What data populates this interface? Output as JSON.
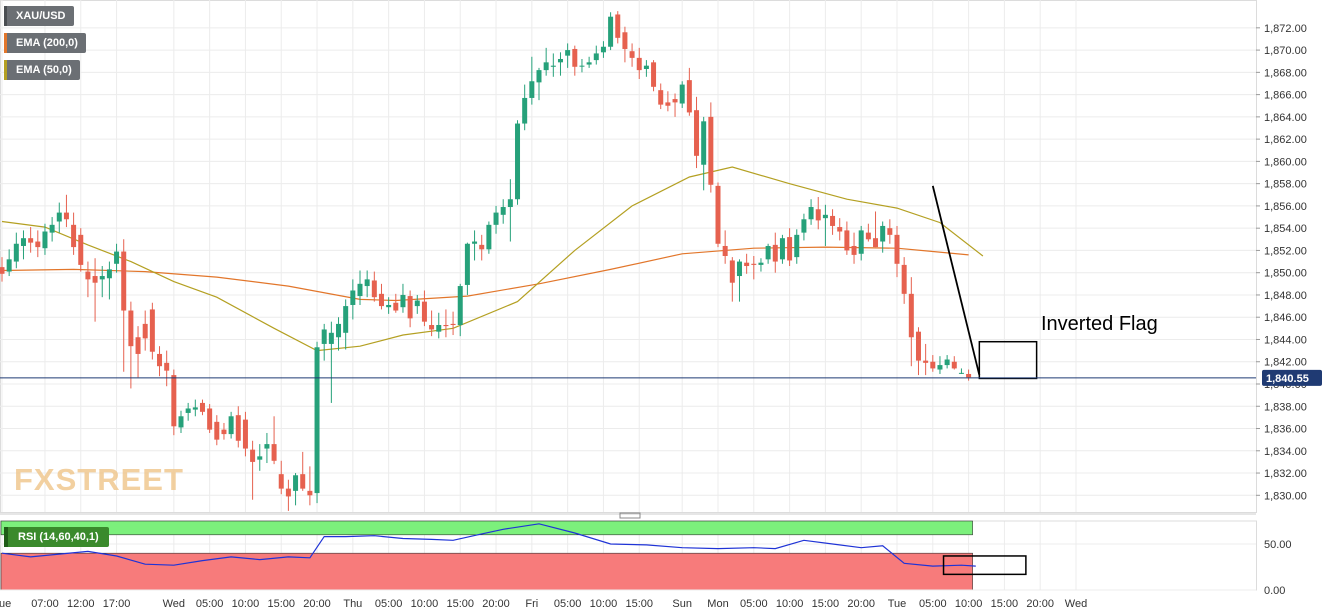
{
  "colors": {
    "up": "#26a17a",
    "down": "#e6614f",
    "ema200": "#e2762b",
    "ema50": "#b4a022",
    "price_line": "#1f3a73",
    "rsi_line": "#1f33d6",
    "rsi_upper": "#7cf07c",
    "rsi_lower": "#f77b7b",
    "grid": "#ececec",
    "axis_text": "#333333",
    "pattern": "#000000"
  },
  "legend": {
    "symbol": "XAU/USD",
    "ema200": "EMA (200,0)",
    "ema50": "EMA (50,0)",
    "rsi": "RSI (14,60,40,1)"
  },
  "annotation": {
    "label": "Inverted Flag"
  },
  "watermark": "FXSTREET",
  "price_label": "1,840.55",
  "chart_data": [
    {
      "type": "candlestick",
      "title": "",
      "ylim": [
        1828.5,
        1874.5
      ],
      "y_ticks": [
        "1,830.00",
        "1,832.00",
        "1,834.00",
        "1,836.00",
        "1,838.00",
        "1,840.00",
        "1,842.00",
        "1,844.00",
        "1,846.00",
        "1,848.00",
        "1,850.00",
        "1,852.00",
        "1,854.00",
        "1,856.00",
        "1,858.00",
        "1,860.00",
        "1,862.00",
        "1,864.00",
        "1,866.00",
        "1,868.00",
        "1,870.00",
        "1,872.00"
      ],
      "y_tick_values": [
        1830,
        1832,
        1834,
        1836,
        1838,
        1840,
        1842,
        1844,
        1846,
        1848,
        1850,
        1852,
        1854,
        1856,
        1858,
        1860,
        1862,
        1864,
        1866,
        1868,
        1870,
        1872
      ],
      "x_ticks": [
        "Tue",
        "07:00",
        "12:00",
        "17:00",
        "Wed",
        "05:00",
        "10:00",
        "15:00",
        "20:00",
        "Thu",
        "05:00",
        "10:00",
        "15:00",
        "20:00",
        "Fri",
        "05:00",
        "10:00",
        "15:00",
        "Sun",
        "Mon",
        "05:00",
        "10:00",
        "15:00",
        "20:00",
        "Tue",
        "05:00",
        "10:00",
        "15:00",
        "20:00",
        "Wed"
      ],
      "x_tick_bars": [
        0,
        6,
        11,
        16,
        24,
        29,
        34,
        39,
        44,
        49,
        54,
        59,
        64,
        69,
        74,
        79,
        84,
        89,
        95,
        100,
        105,
        110,
        115,
        120,
        125,
        130,
        135,
        140,
        145,
        150
      ],
      "last_price": 1840.55,
      "candles": [
        [
          1850.5,
          1851.4,
          1849.2,
          1849.9
        ],
        [
          1850.1,
          1852.1,
          1849.7,
          1851.2
        ],
        [
          1851.0,
          1853.6,
          1850.4,
          1852.6
        ],
        [
          1852.4,
          1853.8,
          1851.2,
          1853.1
        ],
        [
          1853.1,
          1854.1,
          1851.8,
          1852.7
        ],
        [
          1852.8,
          1853.8,
          1851.4,
          1852.3
        ],
        [
          1852.2,
          1854.4,
          1851.6,
          1853.7
        ],
        [
          1853.6,
          1855.0,
          1852.8,
          1854.3
        ],
        [
          1854.6,
          1856.3,
          1853.6,
          1855.4
        ],
        [
          1855.4,
          1857.0,
          1854.1,
          1854.8
        ],
        [
          1854.3,
          1855.4,
          1851.6,
          1852.3
        ],
        [
          1853.4,
          1854.0,
          1850.1,
          1850.7
        ],
        [
          1850.1,
          1851.0,
          1847.8,
          1849.4
        ],
        [
          1849.7,
          1851.3,
          1845.6,
          1849.1
        ],
        [
          1849.4,
          1850.6,
          1847.8,
          1849.7
        ],
        [
          1849.5,
          1851.0,
          1847.6,
          1850.3
        ],
        [
          1850.8,
          1852.6,
          1850.0,
          1851.9
        ],
        [
          1851.9,
          1853.0,
          1841.1,
          1846.6
        ],
        [
          1846.6,
          1847.4,
          1839.6,
          1843.4
        ],
        [
          1844.2,
          1845.2,
          1840.6,
          1842.7
        ],
        [
          1845.4,
          1846.6,
          1843.0,
          1844.1
        ],
        [
          1846.7,
          1847.3,
          1842.2,
          1842.9
        ],
        [
          1842.7,
          1843.4,
          1840.7,
          1841.6
        ],
        [
          1841.9,
          1843.0,
          1839.8,
          1841.2
        ],
        [
          1840.8,
          1841.3,
          1835.4,
          1836.2
        ],
        [
          1836.1,
          1837.6,
          1835.6,
          1837.1
        ],
        [
          1837.4,
          1838.3,
          1836.7,
          1837.8
        ],
        [
          1837.7,
          1838.6,
          1837.1,
          1837.9
        ],
        [
          1838.3,
          1838.6,
          1837.2,
          1837.5
        ],
        [
          1837.8,
          1838.2,
          1835.6,
          1835.9
        ],
        [
          1836.6,
          1837.2,
          1834.5,
          1835.0
        ],
        [
          1835.9,
          1836.5,
          1835.0,
          1835.5
        ],
        [
          1835.5,
          1837.5,
          1835.1,
          1837.1
        ],
        [
          1837.2,
          1838.0,
          1834.3,
          1834.9
        ],
        [
          1836.8,
          1837.5,
          1833.5,
          1834.2
        ],
        [
          1834.1,
          1834.9,
          1829.6,
          1833.0
        ],
        [
          1833.2,
          1834.6,
          1832.2,
          1833.5
        ],
        [
          1834.2,
          1835.6,
          1832.9,
          1834.6
        ],
        [
          1834.6,
          1837.1,
          1832.8,
          1833.1
        ],
        [
          1831.9,
          1833.1,
          1830.1,
          1830.6
        ],
        [
          1830.6,
          1831.4,
          1828.6,
          1829.9
        ],
        [
          1830.4,
          1832.0,
          1829.1,
          1831.8
        ],
        [
          1831.9,
          1833.9,
          1830.4,
          1830.6
        ],
        [
          1830.4,
          1832.6,
          1829.1,
          1830.0
        ],
        [
          1830.2,
          1843.8,
          1829.3,
          1843.3
        ],
        [
          1843.6,
          1845.4,
          1842.1,
          1844.9
        ],
        [
          1843.6,
          1845.6,
          1838.3,
          1844.6
        ],
        [
          1844.2,
          1846.0,
          1843.0,
          1845.4
        ],
        [
          1844.6,
          1847.6,
          1843.1,
          1847.0
        ],
        [
          1847.1,
          1849.4,
          1845.8,
          1848.4
        ],
        [
          1847.9,
          1850.2,
          1847.1,
          1849.0
        ],
        [
          1848.8,
          1850.2,
          1847.8,
          1849.4
        ],
        [
          1849.3,
          1850.1,
          1847.4,
          1847.8
        ],
        [
          1848.1,
          1849.0,
          1846.7,
          1847.0
        ],
        [
          1846.9,
          1847.8,
          1846.3,
          1847.1
        ],
        [
          1847.3,
          1848.1,
          1846.4,
          1846.6
        ],
        [
          1846.9,
          1849.0,
          1846.4,
          1848.0
        ],
        [
          1847.9,
          1848.4,
          1845.1,
          1845.9
        ],
        [
          1847.0,
          1848.0,
          1846.3,
          1847.5
        ],
        [
          1847.4,
          1848.4,
          1845.2,
          1845.6
        ],
        [
          1845.3,
          1846.6,
          1844.3,
          1844.9
        ],
        [
          1844.7,
          1846.4,
          1844.1,
          1845.3
        ],
        [
          1845.3,
          1846.7,
          1844.2,
          1845.2
        ],
        [
          1845.4,
          1846.5,
          1844.4,
          1845.3
        ],
        [
          1845.3,
          1849.0,
          1844.3,
          1848.8
        ],
        [
          1848.9,
          1852.7,
          1848.0,
          1852.6
        ],
        [
          1852.6,
          1853.8,
          1851.1,
          1852.8
        ],
        [
          1852.5,
          1853.4,
          1851.1,
          1852.1
        ],
        [
          1852.1,
          1854.6,
          1851.7,
          1854.3
        ],
        [
          1854.3,
          1856.0,
          1853.5,
          1855.4
        ],
        [
          1855.2,
          1856.6,
          1854.4,
          1855.9
        ],
        [
          1855.9,
          1858.4,
          1852.8,
          1856.6
        ],
        [
          1856.6,
          1863.7,
          1856.1,
          1863.4
        ],
        [
          1863.4,
          1866.9,
          1862.8,
          1865.7
        ],
        [
          1865.7,
          1869.4,
          1865.1,
          1867.2
        ],
        [
          1867.1,
          1868.4,
          1865.5,
          1868.2
        ],
        [
          1868.2,
          1870.2,
          1867.7,
          1868.9
        ],
        [
          1868.5,
          1869.7,
          1867.6,
          1868.6
        ],
        [
          1868.9,
          1869.8,
          1867.7,
          1869.2
        ],
        [
          1869.5,
          1870.6,
          1868.4,
          1870.0
        ],
        [
          1870.1,
          1870.4,
          1867.7,
          1868.5
        ],
        [
          1868.6,
          1869.2,
          1868.0,
          1868.6
        ],
        [
          1868.7,
          1869.4,
          1868.4,
          1868.9
        ],
        [
          1869.1,
          1870.4,
          1868.7,
          1869.7
        ],
        [
          1869.8,
          1870.8,
          1869.3,
          1870.3
        ],
        [
          1870.3,
          1873.4,
          1870.0,
          1873.0
        ],
        [
          1873.2,
          1873.5,
          1870.6,
          1871.1
        ],
        [
          1871.6,
          1872.1,
          1868.9,
          1870.1
        ],
        [
          1869.9,
          1870.6,
          1868.5,
          1869.3
        ],
        [
          1869.3,
          1870.2,
          1867.4,
          1868.2
        ],
        [
          1868.3,
          1869.1,
          1867.6,
          1868.6
        ],
        [
          1868.9,
          1869.1,
          1866.3,
          1866.7
        ],
        [
          1866.4,
          1867.0,
          1864.7,
          1865.1
        ],
        [
          1865.3,
          1866.3,
          1864.5,
          1865.0
        ],
        [
          1865.6,
          1866.1,
          1864.0,
          1865.3
        ],
        [
          1865.2,
          1867.2,
          1864.8,
          1866.9
        ],
        [
          1867.3,
          1868.4,
          1864.1,
          1864.4
        ],
        [
          1864.6,
          1865.8,
          1859.4,
          1860.5
        ],
        [
          1859.7,
          1864.0,
          1857.4,
          1863.6
        ],
        [
          1864.0,
          1865.3,
          1857.2,
          1857.9
        ],
        [
          1857.8,
          1858.1,
          1852.3,
          1852.6
        ],
        [
          1852.4,
          1853.8,
          1850.8,
          1851.5
        ],
        [
          1851.1,
          1851.4,
          1847.4,
          1849.1
        ],
        [
          1849.7,
          1851.2,
          1847.4,
          1851.0
        ],
        [
          1850.9,
          1851.7,
          1849.9,
          1850.6
        ],
        [
          1850.8,
          1851.5,
          1849.4,
          1850.7
        ],
        [
          1850.7,
          1851.3,
          1850.1,
          1850.9
        ],
        [
          1851.2,
          1852.6,
          1850.8,
          1852.4
        ],
        [
          1852.5,
          1853.6,
          1850.0,
          1851.0
        ],
        [
          1851.2,
          1853.4,
          1850.8,
          1853.1
        ],
        [
          1853.2,
          1854.0,
          1850.6,
          1851.1
        ],
        [
          1851.4,
          1853.9,
          1850.8,
          1853.4
        ],
        [
          1853.6,
          1855.3,
          1852.9,
          1854.8
        ],
        [
          1854.8,
          1856.6,
          1854.3,
          1855.9
        ],
        [
          1855.7,
          1856.8,
          1853.9,
          1854.7
        ],
        [
          1854.9,
          1856.1,
          1852.4,
          1855.2
        ],
        [
          1855.1,
          1855.7,
          1853.4,
          1854.2
        ],
        [
          1854.1,
          1854.9,
          1852.9,
          1853.7
        ],
        [
          1853.8,
          1854.6,
          1851.6,
          1852.0
        ],
        [
          1852.4,
          1853.6,
          1850.8,
          1851.6
        ],
        [
          1851.7,
          1854.2,
          1851.1,
          1853.8
        ],
        [
          1853.6,
          1854.4,
          1852.8,
          1853.0
        ],
        [
          1853.1,
          1855.5,
          1852.3,
          1852.3
        ],
        [
          1852.8,
          1854.6,
          1851.8,
          1854.2
        ],
        [
          1854.0,
          1854.8,
          1852.6,
          1853.4
        ],
        [
          1853.4,
          1854.2,
          1849.6,
          1850.8
        ],
        [
          1850.7,
          1851.4,
          1847.2,
          1848.1
        ],
        [
          1848.1,
          1849.6,
          1841.6,
          1844.2
        ],
        [
          1844.7,
          1845.1,
          1840.8,
          1842.1
        ],
        [
          1842.1,
          1843.6,
          1840.8,
          1841.9
        ],
        [
          1842.0,
          1842.6,
          1841.1,
          1841.4
        ],
        [
          1841.3,
          1842.5,
          1840.9,
          1841.7
        ],
        [
          1841.7,
          1842.6,
          1841.4,
          1842.2
        ],
        [
          1842.0,
          1842.5,
          1841.3,
          1841.4
        ],
        [
          1841.0,
          1841.4,
          1840.9,
          1841.0
        ],
        [
          1840.9,
          1841.3,
          1840.3,
          1840.6
        ]
      ],
      "ema200": [
        [
          0,
          1850.2
        ],
        [
          10,
          1850.3
        ],
        [
          20,
          1850.1
        ],
        [
          30,
          1849.6
        ],
        [
          40,
          1848.8
        ],
        [
          50,
          1847.6
        ],
        [
          55,
          1847.5
        ],
        [
          65,
          1847.9
        ],
        [
          75,
          1849.0
        ],
        [
          85,
          1850.3
        ],
        [
          95,
          1851.7
        ],
        [
          105,
          1852.2
        ],
        [
          115,
          1852.3
        ],
        [
          125,
          1852.2
        ],
        [
          130,
          1851.9
        ],
        [
          135,
          1851.6
        ]
      ],
      "ema50": [
        [
          0,
          1854.6
        ],
        [
          6,
          1854.1
        ],
        [
          12,
          1852.5
        ],
        [
          18,
          1851.0
        ],
        [
          24,
          1849.2
        ],
        [
          30,
          1847.8
        ],
        [
          38,
          1845.0
        ],
        [
          44,
          1843.0
        ],
        [
          50,
          1843.4
        ],
        [
          56,
          1844.4
        ],
        [
          63,
          1845.0
        ],
        [
          72,
          1847.4
        ],
        [
          80,
          1852.0
        ],
        [
          88,
          1856.0
        ],
        [
          96,
          1858.6
        ],
        [
          102,
          1859.5
        ],
        [
          110,
          1858.0
        ],
        [
          118,
          1856.6
        ],
        [
          125,
          1855.8
        ],
        [
          131,
          1854.5
        ],
        [
          137,
          1851.5
        ]
      ],
      "rsi_ylim": [
        0,
        75
      ],
      "rsi_ticks": [
        "0.00",
        "50.00"
      ],
      "rsi_tick_values": [
        0,
        50
      ],
      "rsi_bands": {
        "upper": 60,
        "lower": 40
      },
      "rsi": [
        [
          0,
          40
        ],
        [
          4,
          36
        ],
        [
          8,
          39
        ],
        [
          12,
          42
        ],
        [
          16,
          37
        ],
        [
          20,
          28
        ],
        [
          24,
          27
        ],
        [
          28,
          32
        ],
        [
          32,
          36
        ],
        [
          36,
          33
        ],
        [
          40,
          36
        ],
        [
          43,
          35
        ],
        [
          45,
          58
        ],
        [
          48,
          58
        ],
        [
          52,
          59
        ],
        [
          56,
          56
        ],
        [
          60,
          55
        ],
        [
          63,
          54
        ],
        [
          67,
          61
        ],
        [
          70,
          66
        ],
        [
          75,
          72
        ],
        [
          80,
          62
        ],
        [
          85,
          50
        ],
        [
          90,
          49
        ],
        [
          95,
          46
        ],
        [
          100,
          45
        ],
        [
          105,
          46
        ],
        [
          108,
          45
        ],
        [
          112,
          54
        ],
        [
          116,
          50
        ],
        [
          120,
          46
        ],
        [
          123,
          48
        ],
        [
          126,
          29
        ],
        [
          130,
          26
        ],
        [
          134,
          27
        ],
        [
          136,
          26
        ]
      ]
    }
  ]
}
